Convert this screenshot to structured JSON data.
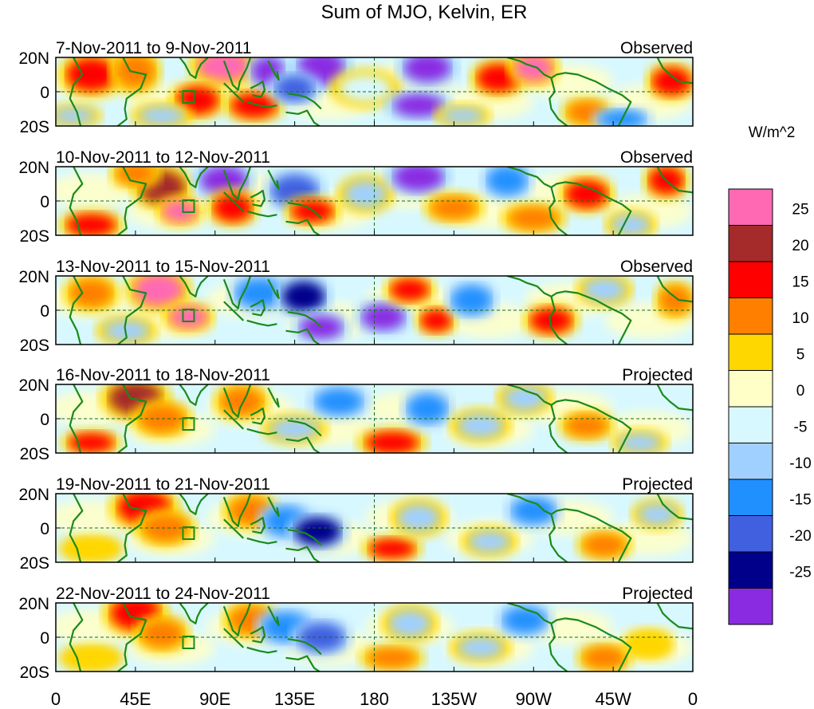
{
  "title": "Sum of MJO, Kelvin, ER",
  "units": "W/m^2",
  "lat_labels": [
    "20N",
    "0",
    "20S"
  ],
  "lon_labels": [
    "0",
    "45E",
    "90E",
    "135E",
    "180",
    "135W",
    "90W",
    "45W",
    "0"
  ],
  "colorbar": {
    "ticks": [
      "25",
      "20",
      "15",
      "10",
      "5",
      "0",
      "-5",
      "-10",
      "-15",
      "-20",
      "-25"
    ],
    "colors": [
      "#ff69b4",
      "#a52a2a",
      "#ff0000",
      "#ff7f00",
      "#ffd700",
      "#ffffc8",
      "#d8f8ff",
      "#a0d0ff",
      "#2090ff",
      "#4060e0",
      "#00008b",
      "#8a2be2"
    ]
  },
  "panels": [
    {
      "date_range": "7-Nov-2011 to 9-Nov-2011",
      "status": "Observed"
    },
    {
      "date_range": "10-Nov-2011 to 12-Nov-2011",
      "status": "Observed"
    },
    {
      "date_range": "13-Nov-2011 to 15-Nov-2011",
      "status": "Observed"
    },
    {
      "date_range": "16-Nov-2011 to 18-Nov-2011",
      "status": "Projected"
    },
    {
      "date_range": "19-Nov-2011 to 21-Nov-2011",
      "status": "Projected"
    },
    {
      "date_range": "22-Nov-2011 to 24-Nov-2011",
      "status": "Projected"
    }
  ],
  "map_style": {
    "coastline_color": "#1a8a1a",
    "equator_line": "dashed",
    "dateline": "dashed",
    "box_marker": "Indian Ocean reference box"
  }
}
